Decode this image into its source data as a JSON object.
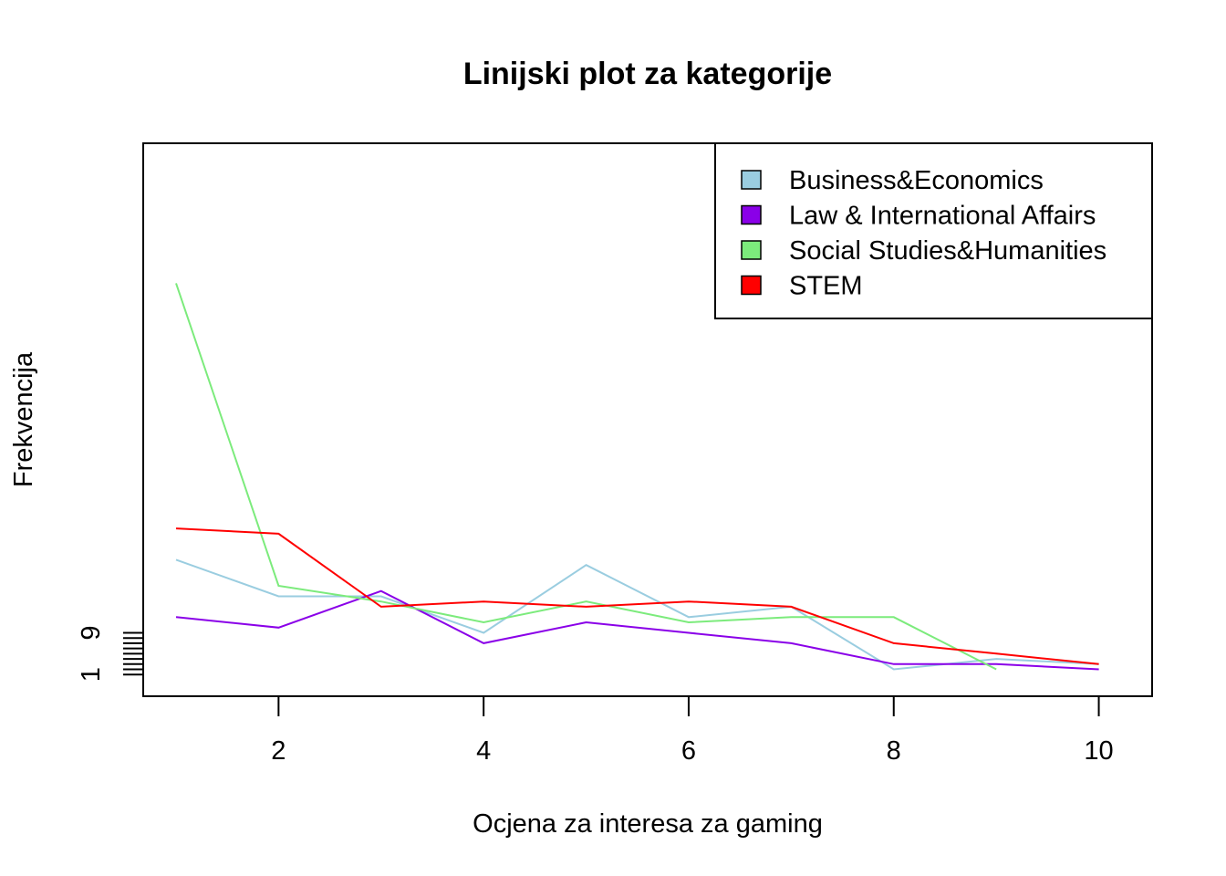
{
  "chart_data": {
    "type": "line",
    "title": "Linijski plot za kategorije",
    "xlabel": "Ocjena za interesa za gaming",
    "ylabel": "Frekvencija",
    "x": [
      1,
      2,
      3,
      4,
      5,
      6,
      7,
      8,
      9,
      10
    ],
    "xlim": [
      0.68,
      10.52
    ],
    "ylim": [
      -3.16,
      102.84
    ],
    "x_ticks": [
      2,
      4,
      6,
      8,
      10
    ],
    "y_ticks": [
      1,
      2,
      3,
      4,
      5,
      6,
      7,
      8,
      9
    ],
    "y_tick_labels": [
      {
        "value": 1,
        "label": "1"
      },
      {
        "value": 9,
        "label": "9"
      }
    ],
    "grid": false,
    "legend_position": "top-right",
    "series": [
      {
        "name": "Business&Economics",
        "color": "#9ACDE0",
        "values": [
          23,
          16,
          16,
          9,
          22,
          12,
          14,
          2,
          4,
          3
        ]
      },
      {
        "name": "Law & International Affairs",
        "color": "#8A00E8",
        "values": [
          12,
          10,
          17,
          7,
          11,
          9,
          7,
          3,
          3,
          2
        ]
      },
      {
        "name": "Social Studies&Humanities",
        "color": "#7CEB7C",
        "values": [
          76,
          18,
          15,
          11,
          15,
          11,
          12,
          12,
          2,
          null
        ]
      },
      {
        "name": "STEM",
        "color": "#FF0000",
        "values": [
          29,
          28,
          14,
          15,
          14,
          15,
          14,
          7,
          5,
          3
        ]
      }
    ]
  }
}
